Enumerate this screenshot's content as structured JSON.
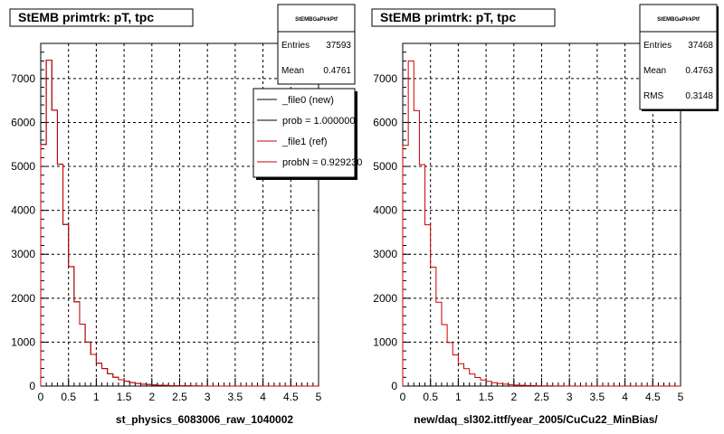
{
  "chart_data": [
    {
      "type": "step-histogram",
      "title": "StEMB primtrk: pT, tpc",
      "xlabel": "st_physics_6083006_raw_1040002",
      "ylabel": "",
      "xlim": [
        0,
        5
      ],
      "ylim": [
        0,
        7800
      ],
      "xticks": [
        "0",
        "0.5",
        "1",
        "1.5",
        "2",
        "2.5",
        "3",
        "3.5",
        "4",
        "4.5",
        "5"
      ],
      "yticks": [
        "0",
        "1000",
        "2000",
        "3000",
        "4000",
        "5000",
        "6000",
        "7000"
      ],
      "grid": true,
      "bin_width": 0.1,
      "series": [
        {
          "name": "_file0 (new)",
          "color": "#000000",
          "values": [
            5500,
            7420,
            6280,
            5050,
            3680,
            2720,
            1920,
            1410,
            1000,
            720,
            520,
            400,
            280,
            200,
            145,
            110,
            80,
            60,
            45,
            35,
            25,
            20,
            15,
            10,
            8,
            5,
            4,
            3,
            2,
            1,
            0,
            0,
            0,
            0,
            0,
            0,
            0,
            0,
            0,
            0,
            0,
            0,
            0,
            0,
            0,
            0,
            0,
            0,
            0,
            0
          ]
        },
        {
          "name": "_file1 (ref)",
          "color": "#cc0000",
          "values": [
            5500,
            7420,
            6280,
            5050,
            3680,
            2720,
            1920,
            1410,
            1000,
            720,
            520,
            400,
            280,
            200,
            145,
            110,
            80,
            60,
            45,
            35,
            25,
            20,
            15,
            10,
            8,
            5,
            4,
            3,
            2,
            1,
            0,
            0,
            0,
            0,
            0,
            0,
            0,
            0,
            0,
            0,
            0,
            0,
            0,
            0,
            0,
            0,
            0,
            0,
            0,
            0
          ]
        }
      ],
      "stats": {
        "header": "StEMBGaPlrkPtf",
        "entries_label": "Entries",
        "entries": "37593",
        "mean_label": "Mean",
        "mean": "0.4761"
      },
      "legend": {
        "placement": "top-right",
        "entries": [
          "_file0 (new)",
          "prob = 1.000000",
          "_file1 (ref)",
          "probN = 0.929230"
        ]
      }
    },
    {
      "type": "step-histogram",
      "title": "StEMB primtrk: pT, tpc",
      "xlabel": "new/daq_sl302.ittf/year_2005/CuCu22_MinBias/",
      "ylabel": "",
      "xlim": [
        0,
        5
      ],
      "ylim": [
        0,
        7800
      ],
      "xticks": [
        "0",
        "0.5",
        "1",
        "1.5",
        "2",
        "2.5",
        "3",
        "3.5",
        "4",
        "4.5",
        "5"
      ],
      "yticks": [
        "0",
        "1000",
        "2000",
        "3000",
        "4000",
        "5000",
        "6000",
        "7000"
      ],
      "grid": true,
      "bin_width": 0.1,
      "series": [
        {
          "name": "",
          "color": "#cc0000",
          "values": [
            5480,
            7400,
            6270,
            5040,
            3670,
            2710,
            1910,
            1400,
            990,
            710,
            510,
            395,
            275,
            195,
            140,
            108,
            78,
            58,
            44,
            34,
            24,
            19,
            14,
            10,
            7,
            5,
            4,
            3,
            2,
            1,
            0,
            0,
            0,
            0,
            0,
            0,
            0,
            0,
            0,
            0,
            0,
            0,
            0,
            0,
            0,
            0,
            0,
            0,
            0,
            0
          ]
        }
      ],
      "stats": {
        "header": "StEMBGaPlrkPtf",
        "entries_label": "Entries",
        "entries": "37468",
        "mean_label": "Mean",
        "mean": "0.4763",
        "rms_label": "RMS",
        "rms": "0.3148"
      }
    }
  ]
}
